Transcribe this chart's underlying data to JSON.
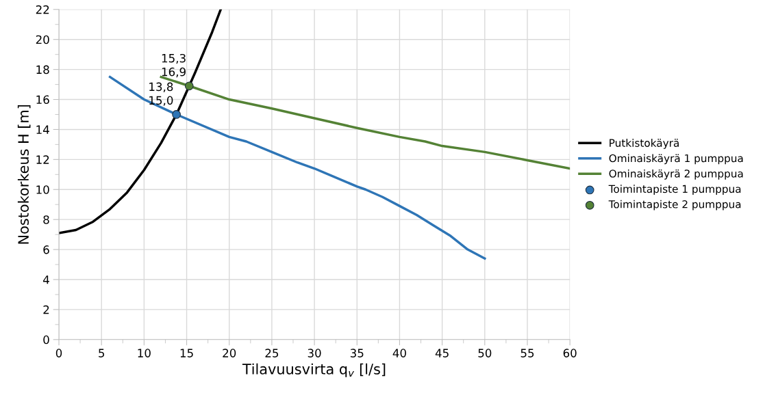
{
  "chart_data": {
    "type": "line",
    "xlabel": "Tilavuusvirta q$_{v}$ [l/s]",
    "ylabel": "Nostokorkeus H [m]",
    "xlim": [
      0,
      60
    ],
    "ylim": [
      0,
      22
    ],
    "xticks": [
      0,
      {
        "value": 2.5,
        "label": null
      },
      5,
      {
        "value": 7.5,
        "label": null
      },
      10,
      {
        "value": 12.5,
        "label": null
      },
      15,
      {
        "value": 17.5,
        "label": null
      },
      20,
      {
        "value": 22.5,
        "label": null
      },
      25,
      {
        "value": 27.5,
        "label": null
      },
      30,
      {
        "value": 32.5,
        "label": null
      },
      35,
      {
        "value": 37.5,
        "label": null
      },
      40,
      {
        "value": 42.5,
        "label": null
      },
      45,
      {
        "value": 47.5,
        "label": null
      },
      50,
      {
        "value": 52.5,
        "label": null
      },
      55,
      {
        "value": 57.5,
        "label": null
      },
      60
    ],
    "yticks": [
      0,
      {
        "value": 1,
        "label": null
      },
      2,
      {
        "value": 3,
        "label": null
      },
      4,
      {
        "value": 5,
        "label": null
      },
      6,
      {
        "value": 7,
        "label": null
      },
      8,
      {
        "value": 9,
        "label": null
      },
      10,
      {
        "value": 11,
        "label": null
      },
      12,
      {
        "value": 13,
        "label": null
      },
      14,
      {
        "value": 15,
        "label": null
      },
      16,
      {
        "value": 17,
        "label": null
      },
      18,
      {
        "value": 19,
        "label": null
      },
      20,
      {
        "value": 21,
        "label": null
      },
      22
    ],
    "grid": true,
    "legend": "right",
    "series": [
      {
        "name": "Putkistokäyrä",
        "color": "#000000",
        "marker": "none",
        "x": [
          0,
          2,
          4,
          6,
          8,
          10,
          12,
          13.8,
          15.3,
          16,
          18,
          19
        ],
        "values": [
          7.1,
          7.3,
          7.85,
          8.7,
          9.8,
          11.3,
          13.1,
          15.0,
          16.9,
          17.8,
          20.5,
          22
        ]
      },
      {
        "name": "Ominaiskäyrä 1 pumppua",
        "color": "#2e75b6",
        "marker": "none",
        "x": [
          6,
          10,
          13.8,
          20,
          22,
          25,
          28,
          30,
          35,
          36,
          38,
          40,
          42,
          44,
          46,
          48,
          50
        ],
        "values": [
          17.5,
          16.0,
          15.0,
          13.5,
          13.2,
          12.5,
          11.8,
          11.4,
          10.2,
          10.0,
          9.5,
          8.9,
          8.3,
          7.6,
          6.9,
          6.0,
          5.4
        ]
      },
      {
        "name": "Ominaiskäyrä 2 pumppua",
        "color": "#548235",
        "marker": "none",
        "x": [
          12,
          15.3,
          20,
          25,
          30,
          35,
          40,
          43,
          45,
          50,
          55,
          60
        ],
        "values": [
          17.5,
          16.9,
          16.0,
          15.4,
          14.75,
          14.1,
          13.5,
          13.2,
          12.9,
          12.5,
          11.95,
          11.4
        ]
      },
      {
        "name": "Toimintapiste 1 pumppua",
        "type": "scatter",
        "color": "#2e75b6",
        "marker": "circle",
        "x": [
          13.8
        ],
        "values": [
          15.0
        ],
        "value_labels": [
          "13,8\n15,0"
        ]
      },
      {
        "name": "Toimintapiste 2 pumppua",
        "type": "scatter",
        "color": "#548235",
        "marker": "circle",
        "x": [
          15.3
        ],
        "values": [
          16.9
        ],
        "value_labels": [
          "15,3\n16,9"
        ]
      }
    ]
  }
}
